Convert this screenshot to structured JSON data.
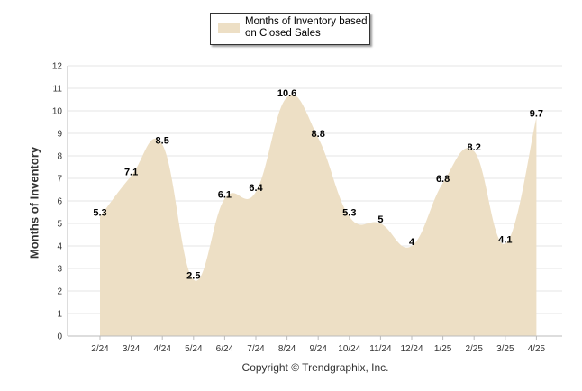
{
  "chart_data": {
    "type": "area",
    "title": "",
    "xlabel": "",
    "ylabel": "Months of Inventory",
    "categories": [
      "2/24",
      "3/24",
      "4/24",
      "5/24",
      "6/24",
      "7/24",
      "8/24",
      "9/24",
      "10/24",
      "11/24",
      "12/24",
      "1/25",
      "2/25",
      "3/25",
      "4/25"
    ],
    "series": [
      {
        "name": "Months of Inventory based on Closed Sales",
        "values": [
          5.3,
          7.1,
          8.5,
          2.5,
          6.1,
          6.4,
          10.6,
          8.8,
          5.3,
          5,
          4,
          6.8,
          8.2,
          4.1,
          9.7
        ],
        "labels": [
          "5.3",
          "7.1",
          "8.5",
          "2.5",
          "6.1",
          "6.4",
          "10.6",
          "8.8",
          "5.3",
          "5",
          "4",
          "6.8",
          "8.2",
          "4.1",
          "9.7"
        ]
      }
    ],
    "ylim": [
      0,
      12
    ],
    "yticks": [
      "0",
      "1",
      "2",
      "3",
      "4",
      "5",
      "6",
      "7",
      "8",
      "9",
      "10",
      "11",
      "12"
    ],
    "grid": true,
    "legend_position": "top-center"
  },
  "legend": {
    "label": "Months of Inventory based on Closed Sales"
  },
  "footer": {
    "copyright": "Copyright © Trendgraphix, Inc."
  },
  "colors": {
    "area_fill": "#EDDFC5",
    "grid": "#E6E6E6",
    "axis": "#BBBBBB"
  }
}
